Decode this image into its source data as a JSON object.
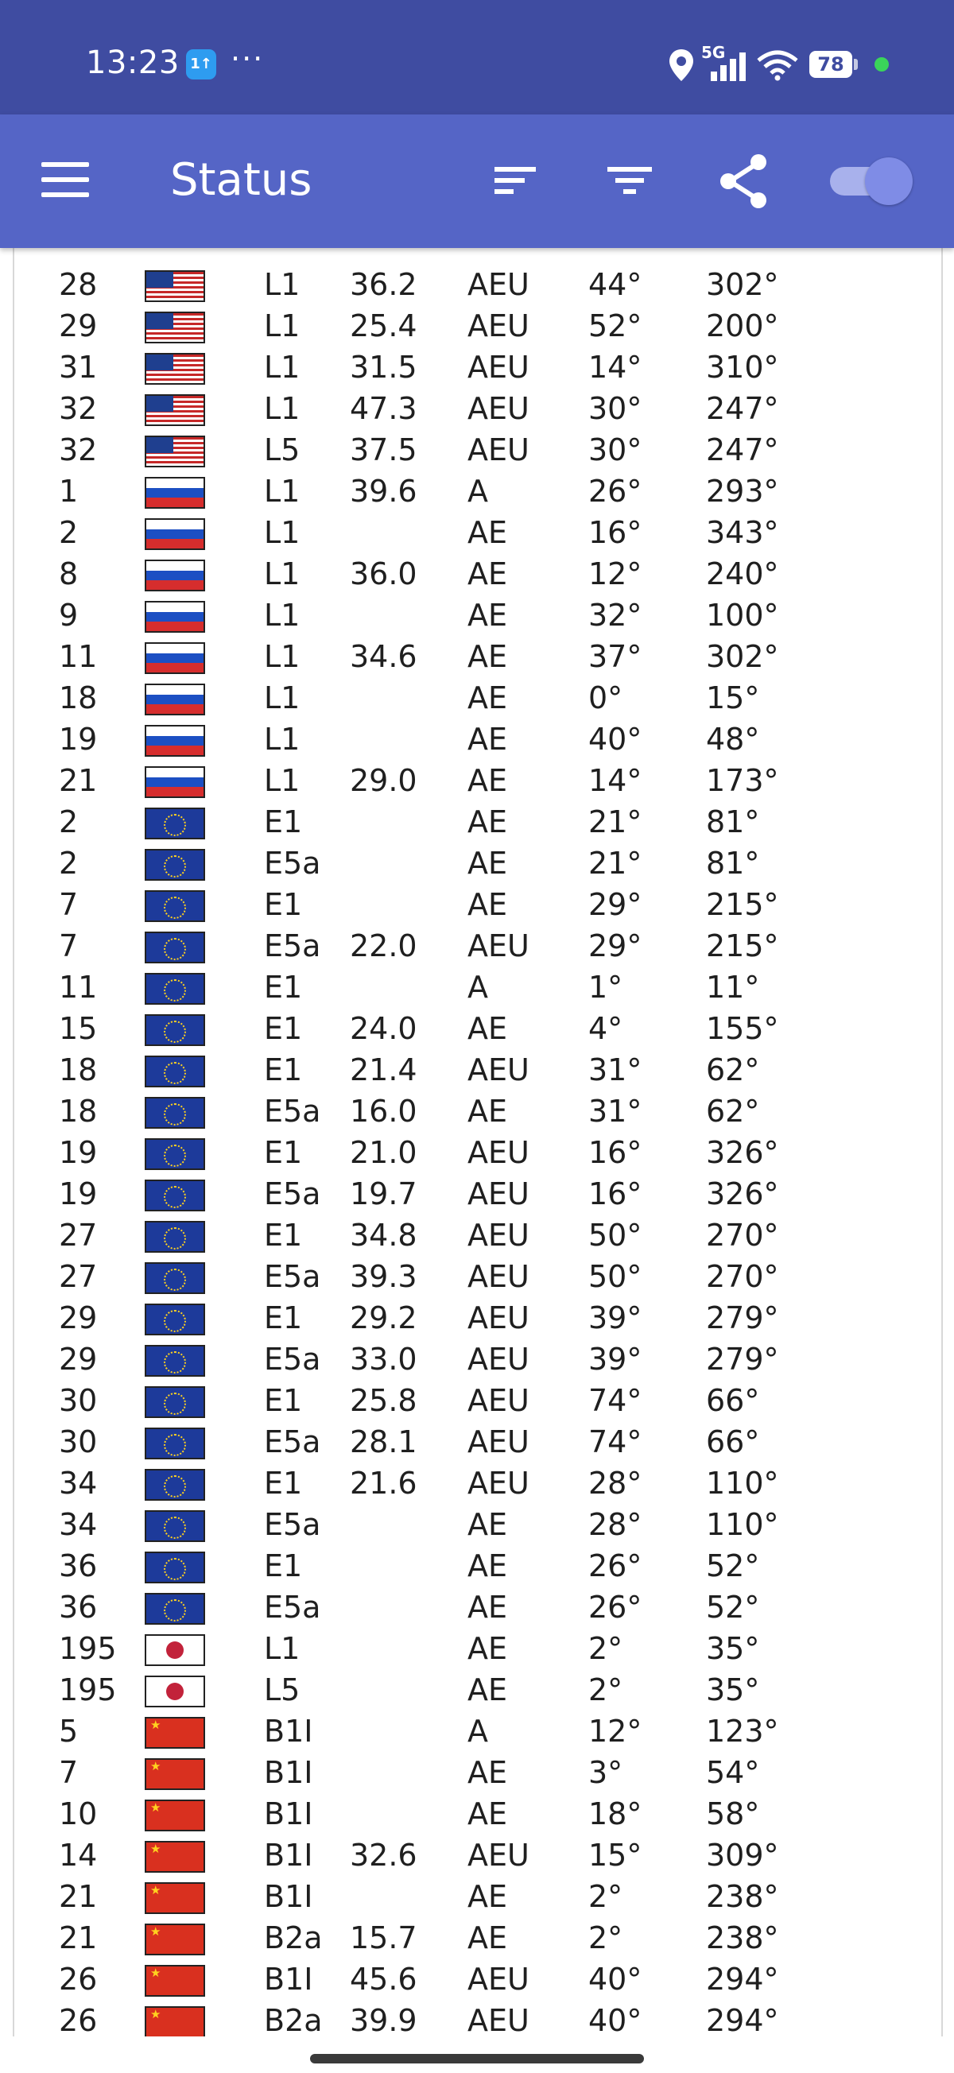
{
  "status_bar": {
    "time": "13:23",
    "app_badge": "1↑",
    "more": "···",
    "network": "5G",
    "battery": "78",
    "icons": [
      "location-icon",
      "signal-icon",
      "wifi-icon",
      "battery-icon",
      "privacy-dot-icon"
    ]
  },
  "app_bar": {
    "title": "Status",
    "actions": [
      "menu-icon",
      "sort-icon",
      "filter-icon",
      "share-icon",
      "toggle-switch"
    ]
  },
  "colors": {
    "status_bar": "#3f4ca1",
    "app_bar": "#5565c6",
    "toggle_thumb": "#7f8ce6"
  },
  "satellites": [
    {
      "prn": "28",
      "flag": "usa",
      "band": "L1",
      "cn0": "36.2",
      "flags": "AEU",
      "elev": "44°",
      "azim": "302°"
    },
    {
      "prn": "29",
      "flag": "usa",
      "band": "L1",
      "cn0": "25.4",
      "flags": "AEU",
      "elev": "52°",
      "azim": "200°"
    },
    {
      "prn": "31",
      "flag": "usa",
      "band": "L1",
      "cn0": "31.5",
      "flags": "AEU",
      "elev": "14°",
      "azim": "310°"
    },
    {
      "prn": "32",
      "flag": "usa",
      "band": "L1",
      "cn0": "47.3",
      "flags": "AEU",
      "elev": "30°",
      "azim": "247°"
    },
    {
      "prn": "32",
      "flag": "usa",
      "band": "L5",
      "cn0": "37.5",
      "flags": "AEU",
      "elev": "30°",
      "azim": "247°"
    },
    {
      "prn": "1",
      "flag": "rus",
      "band": "L1",
      "cn0": "39.6",
      "flags": "A",
      "elev": "26°",
      "azim": "293°"
    },
    {
      "prn": "2",
      "flag": "rus",
      "band": "L1",
      "cn0": "",
      "flags": "AE",
      "elev": "16°",
      "azim": "343°"
    },
    {
      "prn": "8",
      "flag": "rus",
      "band": "L1",
      "cn0": "36.0",
      "flags": "AE",
      "elev": "12°",
      "azim": "240°"
    },
    {
      "prn": "9",
      "flag": "rus",
      "band": "L1",
      "cn0": "",
      "flags": "AE",
      "elev": "32°",
      "azim": "100°"
    },
    {
      "prn": "11",
      "flag": "rus",
      "band": "L1",
      "cn0": "34.6",
      "flags": "AE",
      "elev": "37°",
      "azim": "302°"
    },
    {
      "prn": "18",
      "flag": "rus",
      "band": "L1",
      "cn0": "",
      "flags": "AE",
      "elev": "0°",
      "azim": "15°"
    },
    {
      "prn": "19",
      "flag": "rus",
      "band": "L1",
      "cn0": "",
      "flags": "AE",
      "elev": "40°",
      "azim": "48°"
    },
    {
      "prn": "21",
      "flag": "rus",
      "band": "L1",
      "cn0": "29.0",
      "flags": "AE",
      "elev": "14°",
      "azim": "173°"
    },
    {
      "prn": "2",
      "flag": "eu",
      "band": "E1",
      "cn0": "",
      "flags": "AE",
      "elev": "21°",
      "azim": "81°"
    },
    {
      "prn": "2",
      "flag": "eu",
      "band": "E5a",
      "cn0": "",
      "flags": "AE",
      "elev": "21°",
      "azim": "81°"
    },
    {
      "prn": "7",
      "flag": "eu",
      "band": "E1",
      "cn0": "",
      "flags": "AE",
      "elev": "29°",
      "azim": "215°"
    },
    {
      "prn": "7",
      "flag": "eu",
      "band": "E5a",
      "cn0": "22.0",
      "flags": "AEU",
      "elev": "29°",
      "azim": "215°"
    },
    {
      "prn": "11",
      "flag": "eu",
      "band": "E1",
      "cn0": "",
      "flags": "A",
      "elev": "1°",
      "azim": "11°"
    },
    {
      "prn": "15",
      "flag": "eu",
      "band": "E1",
      "cn0": "24.0",
      "flags": "AE",
      "elev": "4°",
      "azim": "155°"
    },
    {
      "prn": "18",
      "flag": "eu",
      "band": "E1",
      "cn0": "21.4",
      "flags": "AEU",
      "elev": "31°",
      "azim": "62°"
    },
    {
      "prn": "18",
      "flag": "eu",
      "band": "E5a",
      "cn0": "16.0",
      "flags": "AE",
      "elev": "31°",
      "azim": "62°"
    },
    {
      "prn": "19",
      "flag": "eu",
      "band": "E1",
      "cn0": "21.0",
      "flags": "AEU",
      "elev": "16°",
      "azim": "326°"
    },
    {
      "prn": "19",
      "flag": "eu",
      "band": "E5a",
      "cn0": "19.7",
      "flags": "AEU",
      "elev": "16°",
      "azim": "326°"
    },
    {
      "prn": "27",
      "flag": "eu",
      "band": "E1",
      "cn0": "34.8",
      "flags": "AEU",
      "elev": "50°",
      "azim": "270°"
    },
    {
      "prn": "27",
      "flag": "eu",
      "band": "E5a",
      "cn0": "39.3",
      "flags": "AEU",
      "elev": "50°",
      "azim": "270°"
    },
    {
      "prn": "29",
      "flag": "eu",
      "band": "E1",
      "cn0": "29.2",
      "flags": "AEU",
      "elev": "39°",
      "azim": "279°"
    },
    {
      "prn": "29",
      "flag": "eu",
      "band": "E5a",
      "cn0": "33.0",
      "flags": "AEU",
      "elev": "39°",
      "azim": "279°"
    },
    {
      "prn": "30",
      "flag": "eu",
      "band": "E1",
      "cn0": "25.8",
      "flags": "AEU",
      "elev": "74°",
      "azim": "66°"
    },
    {
      "prn": "30",
      "flag": "eu",
      "band": "E5a",
      "cn0": "28.1",
      "flags": "AEU",
      "elev": "74°",
      "azim": "66°"
    },
    {
      "prn": "34",
      "flag": "eu",
      "band": "E1",
      "cn0": "21.6",
      "flags": "AEU",
      "elev": "28°",
      "azim": "110°"
    },
    {
      "prn": "34",
      "flag": "eu",
      "band": "E5a",
      "cn0": "",
      "flags": "AE",
      "elev": "28°",
      "azim": "110°"
    },
    {
      "prn": "36",
      "flag": "eu",
      "band": "E1",
      "cn0": "",
      "flags": "AE",
      "elev": "26°",
      "azim": "52°"
    },
    {
      "prn": "36",
      "flag": "eu",
      "band": "E5a",
      "cn0": "",
      "flags": "AE",
      "elev": "26°",
      "azim": "52°"
    },
    {
      "prn": "195",
      "flag": "jpn",
      "band": "L1",
      "cn0": "",
      "flags": "AE",
      "elev": "2°",
      "azim": "35°"
    },
    {
      "prn": "195",
      "flag": "jpn",
      "band": "L5",
      "cn0": "",
      "flags": "AE",
      "elev": "2°",
      "azim": "35°"
    },
    {
      "prn": "5",
      "flag": "chn",
      "band": "B1I",
      "cn0": "",
      "flags": "A",
      "elev": "12°",
      "azim": "123°"
    },
    {
      "prn": "7",
      "flag": "chn",
      "band": "B1I",
      "cn0": "",
      "flags": "AE",
      "elev": "3°",
      "azim": "54°"
    },
    {
      "prn": "10",
      "flag": "chn",
      "band": "B1I",
      "cn0": "",
      "flags": "AE",
      "elev": "18°",
      "azim": "58°"
    },
    {
      "prn": "14",
      "flag": "chn",
      "band": "B1I",
      "cn0": "32.6",
      "flags": "AEU",
      "elev": "15°",
      "azim": "309°"
    },
    {
      "prn": "21",
      "flag": "chn",
      "band": "B1I",
      "cn0": "",
      "flags": "AE",
      "elev": "2°",
      "azim": "238°"
    },
    {
      "prn": "21",
      "flag": "chn",
      "band": "B2a",
      "cn0": "15.7",
      "flags": "AE",
      "elev": "2°",
      "azim": "238°"
    },
    {
      "prn": "26",
      "flag": "chn",
      "band": "B1I",
      "cn0": "45.6",
      "flags": "AEU",
      "elev": "40°",
      "azim": "294°"
    },
    {
      "prn": "26",
      "flag": "chn",
      "band": "B2a",
      "cn0": "39.9",
      "flags": "AEU",
      "elev": "40°",
      "azim": "294°"
    }
  ]
}
